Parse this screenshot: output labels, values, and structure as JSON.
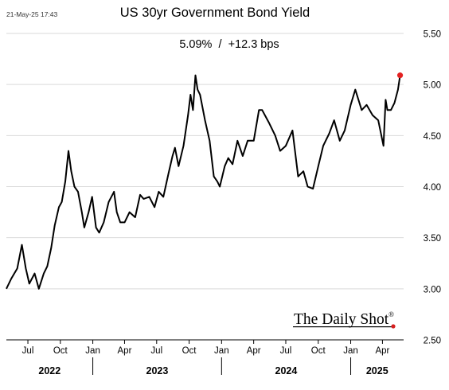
{
  "chart_data": {
    "type": "line",
    "title": "US 30yr Government Bond Yield",
    "subtitle": "5.09%  /  +12.3 bps",
    "date_stamp": "21-May-25 17:43",
    "watermark": "The Daily Shot",
    "watermark_mark": "®",
    "ylim": [
      2.5,
      5.5
    ],
    "yticks": [
      2.5,
      3.0,
      3.5,
      4.0,
      4.5,
      5.0,
      5.5
    ],
    "ytick_labels": [
      "2.50",
      "3.00",
      "3.50",
      "4.00",
      "4.50",
      "5.00",
      "5.50"
    ],
    "xlim": [
      "2022-05-01",
      "2025-05-31"
    ],
    "xticks": [
      {
        "label": "Jul",
        "date": "2022-07-01"
      },
      {
        "label": "Oct",
        "date": "2022-10-01"
      },
      {
        "label": "Jan",
        "date": "2023-01-01"
      },
      {
        "label": "Apr",
        "date": "2023-04-01"
      },
      {
        "label": "Jul",
        "date": "2023-07-01"
      },
      {
        "label": "Oct",
        "date": "2023-10-01"
      },
      {
        "label": "Jan",
        "date": "2024-01-01"
      },
      {
        "label": "Apr",
        "date": "2024-04-01"
      },
      {
        "label": "Jul",
        "date": "2024-07-01"
      },
      {
        "label": "Oct",
        "date": "2024-10-01"
      },
      {
        "label": "Jan",
        "date": "2025-01-01"
      },
      {
        "label": "Apr",
        "date": "2025-04-01"
      }
    ],
    "years": [
      {
        "label": "2022",
        "start": "2022-05-01",
        "end": "2023-01-01"
      },
      {
        "label": "2023",
        "start": "2023-01-01",
        "end": "2024-01-01"
      },
      {
        "label": "2024",
        "start": "2024-01-01",
        "end": "2025-01-01"
      },
      {
        "label": "2025",
        "start": "2025-01-01",
        "end": "2025-05-31"
      }
    ],
    "series": [
      {
        "color": "#000000",
        "x": [
          "2022-05-01",
          "2022-05-15",
          "2022-06-01",
          "2022-06-14",
          "2022-06-25",
          "2022-07-05",
          "2022-07-20",
          "2022-08-01",
          "2022-08-15",
          "2022-08-25",
          "2022-09-05",
          "2022-09-15",
          "2022-09-27",
          "2022-10-05",
          "2022-10-15",
          "2022-10-24",
          "2022-11-01",
          "2022-11-10",
          "2022-11-20",
          "2022-12-01",
          "2022-12-08",
          "2022-12-20",
          "2022-12-30",
          "2023-01-10",
          "2023-01-19",
          "2023-02-01",
          "2023-02-15",
          "2023-03-02",
          "2023-03-10",
          "2023-03-20",
          "2023-04-01",
          "2023-04-15",
          "2023-05-01",
          "2023-05-15",
          "2023-05-25",
          "2023-06-10",
          "2023-06-25",
          "2023-07-07",
          "2023-07-20",
          "2023-08-03",
          "2023-08-15",
          "2023-08-22",
          "2023-09-01",
          "2023-09-15",
          "2023-09-28",
          "2023-10-05",
          "2023-10-12",
          "2023-10-19",
          "2023-10-25",
          "2023-11-01",
          "2023-11-15",
          "2023-11-28",
          "2023-12-10",
          "2023-12-20",
          "2023-12-27",
          "2024-01-10",
          "2024-01-20",
          "2024-02-01",
          "2024-02-15",
          "2024-03-01",
          "2024-03-15",
          "2024-04-01",
          "2024-04-16",
          "2024-04-25",
          "2024-05-15",
          "2024-06-01",
          "2024-06-15",
          "2024-07-01",
          "2024-07-20",
          "2024-08-05",
          "2024-08-20",
          "2024-09-01",
          "2024-09-16",
          "2024-10-01",
          "2024-10-15",
          "2024-11-01",
          "2024-11-15",
          "2024-12-01",
          "2024-12-15",
          "2025-01-01",
          "2025-01-14",
          "2025-02-01",
          "2025-02-15",
          "2025-03-04",
          "2025-03-20",
          "2025-04-04",
          "2025-04-10",
          "2025-04-15",
          "2025-04-25",
          "2025-05-05",
          "2025-05-15",
          "2025-05-21"
        ],
        "y": [
          3.0,
          3.1,
          3.2,
          3.43,
          3.2,
          3.05,
          3.15,
          3.0,
          3.15,
          3.22,
          3.4,
          3.62,
          3.8,
          3.85,
          4.05,
          4.35,
          4.15,
          4.0,
          3.95,
          3.75,
          3.6,
          3.75,
          3.9,
          3.6,
          3.55,
          3.65,
          3.85,
          3.95,
          3.75,
          3.65,
          3.65,
          3.75,
          3.7,
          3.92,
          3.88,
          3.9,
          3.8,
          3.95,
          3.9,
          4.12,
          4.3,
          4.38,
          4.2,
          4.4,
          4.7,
          4.9,
          4.75,
          5.09,
          4.95,
          4.9,
          4.65,
          4.45,
          4.1,
          4.05,
          4.0,
          4.2,
          4.28,
          4.22,
          4.45,
          4.3,
          4.45,
          4.45,
          4.75,
          4.75,
          4.62,
          4.5,
          4.35,
          4.4,
          4.55,
          4.1,
          4.15,
          4.0,
          3.98,
          4.2,
          4.4,
          4.52,
          4.65,
          4.45,
          4.55,
          4.8,
          4.95,
          4.75,
          4.8,
          4.7,
          4.65,
          4.4,
          4.85,
          4.75,
          4.75,
          4.82,
          4.95,
          5.09
        ]
      }
    ],
    "last_point": {
      "x": "2025-05-21",
      "y": 5.09,
      "color": "#e32222"
    },
    "grid": true,
    "legend": false
  }
}
